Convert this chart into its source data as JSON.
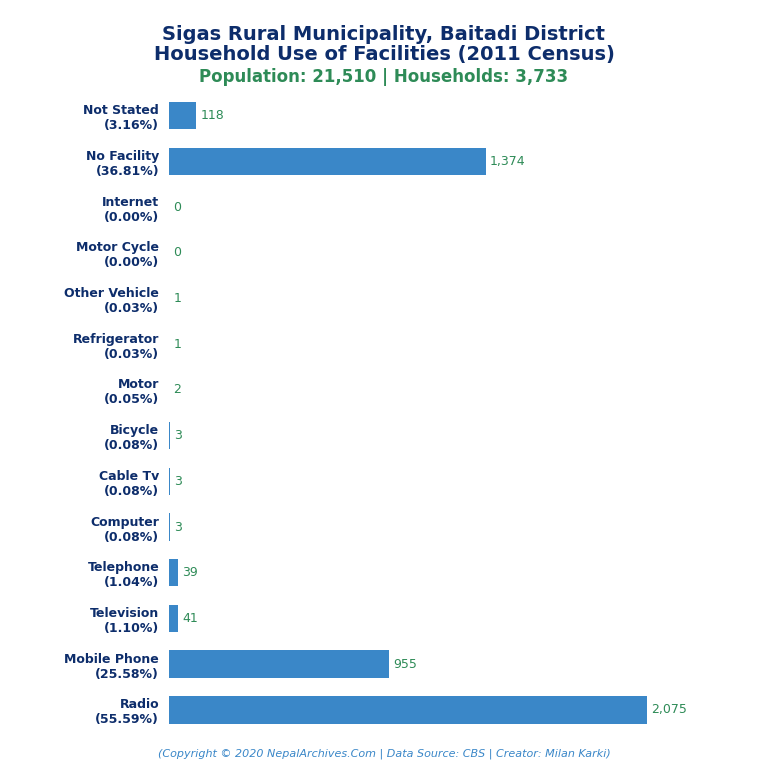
{
  "title_line1": "Sigas Rural Municipality, Baitadi District",
  "title_line2": "Household Use of Facilities (2011 Census)",
  "subtitle": "Population: 21,510 | Households: 3,733",
  "footer": "(Copyright © 2020 NepalArchives.Com | Data Source: CBS | Creator: Milan Karki)",
  "categories": [
    "Not Stated\n(3.16%)",
    "No Facility\n(36.81%)",
    "Internet\n(0.00%)",
    "Motor Cycle\n(0.00%)",
    "Other Vehicle\n(0.03%)",
    "Refrigerator\n(0.03%)",
    "Motor\n(0.05%)",
    "Bicycle\n(0.08%)",
    "Cable Tv\n(0.08%)",
    "Computer\n(0.08%)",
    "Telephone\n(1.04%)",
    "Television\n(1.10%)",
    "Mobile Phone\n(25.58%)",
    "Radio\n(55.59%)"
  ],
  "values": [
    118,
    1374,
    0,
    0,
    1,
    1,
    2,
    3,
    3,
    3,
    39,
    41,
    955,
    2075
  ],
  "bar_color": "#3a87c8",
  "value_color": "#2e8b57",
  "title_color": "#0d2d6b",
  "subtitle_color": "#2e8b57",
  "footer_color": "#3a87c8",
  "bg_color": "#ffffff",
  "xlim": [
    0,
    2300
  ],
  "title_fontsize": 14,
  "subtitle_fontsize": 12,
  "label_fontsize": 9,
  "value_fontsize": 9,
  "footer_fontsize": 8
}
